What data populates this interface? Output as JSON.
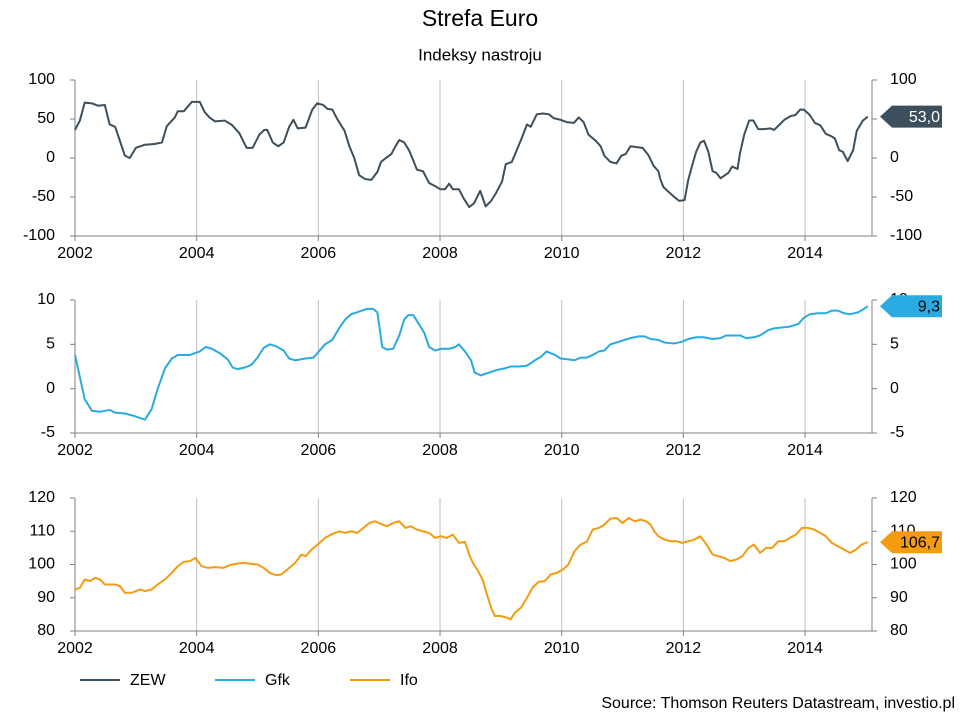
{
  "title": "Strefa Euro",
  "subtitle": "Indeksy nastroju",
  "source": "Source: Thomson Reuters Datastream, investio.pl",
  "chart_data": [
    {
      "type": "line",
      "xlim": [
        2002,
        2015.1
      ],
      "xticks": [
        2002,
        2004,
        2006,
        2008,
        2010,
        2012,
        2014
      ],
      "ylim": [
        -100,
        100
      ],
      "yticks": [
        -100,
        -50,
        0,
        50,
        100
      ],
      "grid": true,
      "x": [
        2002.0,
        2002.08,
        2002.16,
        2002.28,
        2002.38,
        2002.49,
        2002.57,
        2002.66,
        2002.82,
        2002.9,
        2003.0,
        2003.15,
        2003.31,
        2003.43,
        2003.51,
        2003.64,
        2003.69,
        2003.79,
        2003.92,
        2004.05,
        2004.13,
        2004.21,
        2004.3,
        2004.46,
        2004.57,
        2004.7,
        2004.82,
        2004.92,
        2005.03,
        2005.11,
        2005.16,
        2005.25,
        2005.34,
        2005.43,
        2005.52,
        2005.59,
        2005.66,
        2005.79,
        2005.9,
        2005.98,
        2006.08,
        2006.15,
        2006.23,
        2006.31,
        2006.43,
        2006.51,
        2006.59,
        2006.67,
        2006.77,
        2006.87,
        2006.97,
        2007.03,
        2007.11,
        2007.2,
        2007.26,
        2007.33,
        2007.41,
        2007.49,
        2007.56,
        2007.62,
        2007.72,
        2007.82,
        2007.92,
        2008.0,
        2008.08,
        2008.15,
        2008.21,
        2008.31,
        2008.39,
        2008.48,
        2008.56,
        2008.66,
        2008.75,
        2008.84,
        2008.92,
        2009.02,
        2009.08,
        2009.18,
        2009.26,
        2009.34,
        2009.43,
        2009.49,
        2009.59,
        2009.69,
        2009.79,
        2009.87,
        2009.98,
        2010.08,
        2010.2,
        2010.28,
        2010.36,
        2010.44,
        2010.56,
        2010.64,
        2010.7,
        2010.8,
        2010.9,
        2010.98,
        2011.05,
        2011.13,
        2011.23,
        2011.33,
        2011.43,
        2011.51,
        2011.59,
        2011.62,
        2011.67,
        2011.75,
        2011.85,
        2011.93,
        2012.02,
        2012.08,
        2012.15,
        2012.21,
        2012.28,
        2012.34,
        2012.41,
        2012.48,
        2012.54,
        2012.61,
        2012.74,
        2012.8,
        2012.89,
        2012.93,
        2013.0,
        2013.08,
        2013.15,
        2013.23,
        2013.33,
        2013.43,
        2013.49,
        2013.57,
        2013.66,
        2013.77,
        2013.84,
        2013.92,
        2013.98,
        2014.08,
        2014.16,
        2014.25,
        2014.34,
        2014.43,
        2014.49,
        2014.56,
        2014.62,
        2014.7,
        2014.79,
        2014.85,
        2014.95,
        2015.03
      ],
      "series": [
        {
          "name": "ZEW",
          "color": "#3d4f5c",
          "label_text_color": "#ffffff",
          "last_value_label": "53,0",
          "values": [
            36,
            48,
            71,
            70,
            67,
            68,
            43,
            40,
            3,
            0,
            13,
            17,
            18,
            20,
            41,
            52,
            60,
            60,
            72,
            72,
            59,
            52,
            47,
            48,
            43,
            32,
            13,
            13,
            30,
            36,
            36,
            20,
            15,
            20,
            40,
            49,
            38,
            39,
            62,
            70,
            68,
            63,
            62,
            50,
            35,
            15,
            0,
            -22,
            -27,
            -28,
            -18,
            -5,
            0,
            5,
            14,
            23,
            20,
            10,
            -3,
            -15,
            -17,
            -32,
            -36,
            -40,
            -40,
            -33,
            -40,
            -40,
            -52,
            -63,
            -58,
            -42,
            -62,
            -55,
            -45,
            -30,
            -8,
            -5,
            10,
            25,
            43,
            40,
            56,
            57,
            56,
            51,
            49,
            46,
            45,
            52,
            46,
            30,
            22,
            15,
            3,
            -5,
            -7,
            3,
            5,
            15,
            14,
            13,
            3,
            -10,
            -17,
            -27,
            -37,
            -43,
            -50,
            -55,
            -54,
            -28,
            -8,
            8,
            20,
            22,
            8,
            -17,
            -19,
            -26,
            -19,
            -11,
            -14,
            6,
            30,
            48,
            48,
            37,
            37,
            38,
            36,
            42,
            49,
            54,
            55,
            62,
            62,
            55,
            45,
            42,
            31,
            28,
            25,
            10,
            8,
            -4,
            10,
            35,
            48,
            53
          ]
        }
      ]
    },
    {
      "type": "line",
      "xlim": [
        2002,
        2015.1
      ],
      "xticks": [
        2002,
        2004,
        2006,
        2008,
        2010,
        2012,
        2014
      ],
      "ylim": [
        -5,
        10
      ],
      "yticks": [
        -5,
        0,
        5,
        10
      ],
      "grid": true,
      "x": [
        2002.0,
        2002.16,
        2002.28,
        2002.41,
        2002.57,
        2002.66,
        2002.82,
        2002.98,
        2003.15,
        2003.26,
        2003.36,
        2003.48,
        2003.59,
        2003.69,
        2003.89,
        2004.05,
        2004.15,
        2004.25,
        2004.38,
        2004.51,
        2004.59,
        2004.67,
        2004.8,
        2004.9,
        2005.0,
        2005.1,
        2005.2,
        2005.3,
        2005.43,
        2005.52,
        2005.62,
        2005.79,
        2005.92,
        2006.02,
        2006.11,
        2006.23,
        2006.34,
        2006.44,
        2006.54,
        2006.67,
        2006.8,
        2006.9,
        2006.97,
        2007.05,
        2007.13,
        2007.23,
        2007.33,
        2007.41,
        2007.48,
        2007.56,
        2007.66,
        2007.74,
        2007.82,
        2007.92,
        2008.02,
        2008.15,
        2008.25,
        2008.31,
        2008.41,
        2008.51,
        2008.57,
        2008.67,
        2008.8,
        2008.93,
        2009.07,
        2009.16,
        2009.3,
        2009.43,
        2009.56,
        2009.66,
        2009.75,
        2009.89,
        2009.98,
        2010.11,
        2010.21,
        2010.31,
        2010.41,
        2010.51,
        2010.61,
        2010.7,
        2010.8,
        2010.9,
        2011.03,
        2011.13,
        2011.26,
        2011.36,
        2011.46,
        2011.59,
        2011.69,
        2011.85,
        2011.98,
        2012.08,
        2012.21,
        2012.34,
        2012.48,
        2012.61,
        2012.7,
        2012.84,
        2012.93,
        2013.03,
        2013.16,
        2013.26,
        2013.39,
        2013.49,
        2013.62,
        2013.75,
        2013.89,
        2013.98,
        2014.08,
        2014.21,
        2014.34,
        2014.44,
        2014.54,
        2014.64,
        2014.74,
        2014.87,
        2014.97,
        2015.03
      ],
      "series": [
        {
          "name": "Gfk",
          "color": "#29abe2",
          "label_text_color": "#000000",
          "last_value_label": "9,3",
          "values": [
            3.8,
            -1.2,
            -2.5,
            -2.6,
            -2.4,
            -2.7,
            -2.8,
            -3.1,
            -3.5,
            -2.3,
            0,
            2.3,
            3.4,
            3.8,
            3.8,
            4.2,
            4.7,
            4.5,
            4.0,
            3.3,
            2.4,
            2.2,
            2.4,
            2.7,
            3.5,
            4.6,
            5.0,
            4.8,
            4.3,
            3.4,
            3.2,
            3.4,
            3.5,
            4.3,
            5.0,
            5.5,
            6.8,
            7.8,
            8.4,
            8.7,
            9.0,
            9.0,
            8.6,
            4.7,
            4.4,
            4.5,
            6.0,
            7.8,
            8.3,
            8.3,
            7.2,
            6.3,
            4.7,
            4.3,
            4.5,
            4.5,
            4.7,
            5.0,
            4.2,
            3.2,
            1.8,
            1.5,
            1.8,
            2.1,
            2.3,
            2.5,
            2.5,
            2.6,
            3.2,
            3.6,
            4.2,
            3.8,
            3.4,
            3.3,
            3.2,
            3.5,
            3.5,
            3.8,
            4.2,
            4.3,
            5.0,
            5.2,
            5.5,
            5.7,
            5.9,
            5.9,
            5.6,
            5.5,
            5.2,
            5.1,
            5.3,
            5.6,
            5.8,
            5.8,
            5.6,
            5.7,
            6.0,
            6.0,
            6.0,
            5.7,
            5.8,
            6.0,
            6.6,
            6.8,
            6.9,
            7.0,
            7.3,
            8.0,
            8.4,
            8.5,
            8.5,
            8.8,
            8.8,
            8.5,
            8.4,
            8.6,
            9.0,
            9.3
          ]
        }
      ]
    },
    {
      "type": "line",
      "xlim": [
        2002,
        2015.1
      ],
      "xticks": [
        2002,
        2004,
        2006,
        2008,
        2010,
        2012,
        2014
      ],
      "ylim": [
        80,
        120
      ],
      "yticks": [
        80,
        90,
        100,
        110,
        120
      ],
      "grid": true,
      "x": [
        2002.0,
        2002.08,
        2002.16,
        2002.25,
        2002.33,
        2002.41,
        2002.49,
        2002.66,
        2002.74,
        2002.82,
        2002.93,
        2003.07,
        2003.15,
        2003.26,
        2003.36,
        2003.48,
        2003.59,
        2003.69,
        2003.79,
        2003.89,
        2003.98,
        2004.08,
        2004.18,
        2004.31,
        2004.44,
        2004.54,
        2004.64,
        2004.77,
        2004.9,
        2005.0,
        2005.1,
        2005.2,
        2005.3,
        2005.39,
        2005.52,
        2005.62,
        2005.72,
        2005.79,
        2005.89,
        2006.02,
        2006.11,
        2006.21,
        2006.34,
        2006.44,
        2006.54,
        2006.64,
        2006.74,
        2006.84,
        2006.93,
        2007.03,
        2007.13,
        2007.23,
        2007.33,
        2007.43,
        2007.52,
        2007.62,
        2007.72,
        2007.82,
        2007.92,
        2008.02,
        2008.11,
        2008.21,
        2008.31,
        2008.41,
        2008.48,
        2008.54,
        2008.61,
        2008.7,
        2008.77,
        2008.84,
        2008.9,
        2009.0,
        2009.1,
        2009.16,
        2009.23,
        2009.33,
        2009.43,
        2009.52,
        2009.62,
        2009.72,
        2009.82,
        2009.92,
        2010.02,
        2010.11,
        2010.21,
        2010.31,
        2010.41,
        2010.51,
        2010.61,
        2010.7,
        2010.8,
        2010.9,
        2011.0,
        2011.1,
        2011.2,
        2011.3,
        2011.39,
        2011.46,
        2011.52,
        2011.59,
        2011.69,
        2011.79,
        2011.89,
        2011.98,
        2012.08,
        2012.18,
        2012.28,
        2012.38,
        2012.48,
        2012.57,
        2012.67,
        2012.77,
        2012.87,
        2012.97,
        2013.07,
        2013.16,
        2013.26,
        2013.36,
        2013.46,
        2013.56,
        2013.66,
        2013.75,
        2013.85,
        2013.95,
        2014.05,
        2014.15,
        2014.25,
        2014.34,
        2014.44,
        2014.54,
        2014.64,
        2014.74,
        2014.84,
        2014.93,
        2015.03
      ],
      "series": [
        {
          "name": "Ifo",
          "color": "#f39c12",
          "label_text_color": "#000000",
          "last_value_label": "106,7",
          "values": [
            92.5,
            93,
            95.5,
            95,
            96,
            95.5,
            94,
            94,
            93.5,
            91.5,
            91.5,
            92.5,
            92,
            92.5,
            94,
            95.5,
            97.5,
            99.5,
            100.8,
            101,
            102,
            99.5,
            99,
            99.2,
            99,
            99.8,
            100.2,
            100.5,
            100.2,
            100,
            99,
            97.5,
            96.8,
            97,
            99,
            100.5,
            103,
            102.5,
            104.5,
            106.5,
            108,
            109,
            110,
            109.5,
            110,
            109.5,
            111,
            112.5,
            113,
            112.2,
            111.5,
            112.5,
            113,
            111,
            111.5,
            110.5,
            110,
            109.5,
            108,
            108.5,
            108,
            109,
            106.5,
            106.8,
            103,
            100.5,
            98.5,
            95.5,
            91,
            87,
            84.5,
            84.5,
            84,
            83.5,
            85.5,
            87,
            90,
            93,
            94.8,
            95,
            97,
            97.5,
            98.5,
            100,
            104,
            106,
            106.8,
            110.5,
            111,
            112,
            113.8,
            114,
            112.5,
            114,
            113,
            113.5,
            113,
            112,
            110,
            108.5,
            107.5,
            107,
            107,
            106.5,
            107,
            107.5,
            108.5,
            106,
            103,
            102.5,
            102,
            101,
            101.5,
            102.5,
            105,
            106,
            103.5,
            105,
            105,
            107,
            107,
            108,
            109,
            111,
            111,
            110.5,
            109.5,
            108.5,
            106.5,
            105.5,
            104.5,
            103.5,
            104.5,
            106,
            106.7
          ]
        }
      ]
    }
  ]
}
